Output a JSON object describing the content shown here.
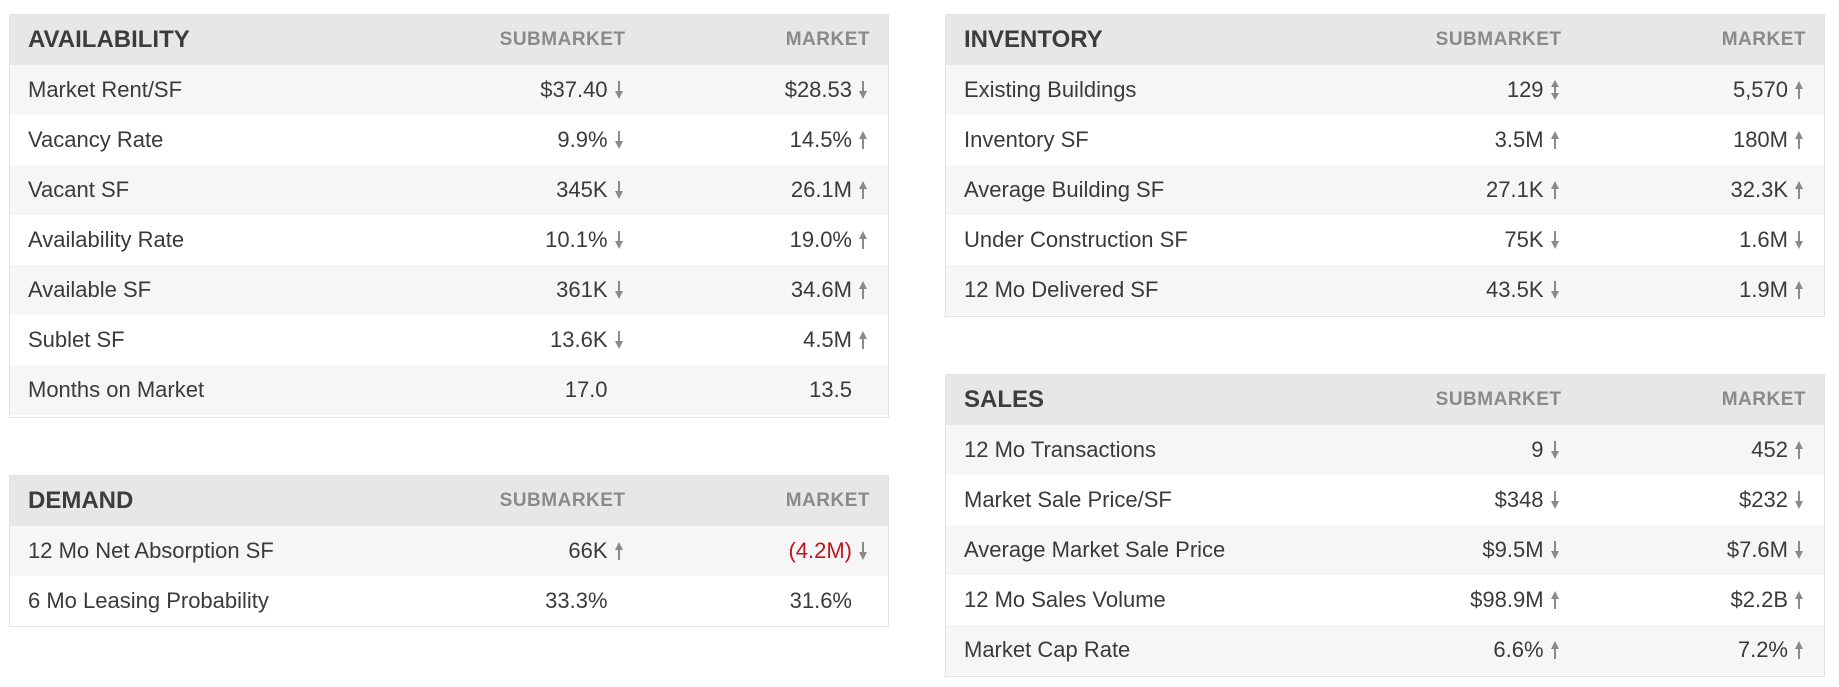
{
  "availability": {
    "title": "AVAILABILITY",
    "col_submarket": "SUBMARKET",
    "col_market": "MARKET",
    "rows": [
      {
        "label": "Market Rent/SF",
        "sub": "$37.40",
        "sub_dir": "down",
        "mkt": "$28.53",
        "mkt_dir": "down"
      },
      {
        "label": "Vacancy Rate",
        "sub": "9.9%",
        "sub_dir": "down",
        "mkt": "14.5%",
        "mkt_dir": "up"
      },
      {
        "label": "Vacant SF",
        "sub": "345K",
        "sub_dir": "down",
        "mkt": "26.1M",
        "mkt_dir": "up"
      },
      {
        "label": "Availability Rate",
        "sub": "10.1%",
        "sub_dir": "down",
        "mkt": "19.0%",
        "mkt_dir": "up"
      },
      {
        "label": "Available SF",
        "sub": "361K",
        "sub_dir": "down",
        "mkt": "34.6M",
        "mkt_dir": "up"
      },
      {
        "label": "Sublet SF",
        "sub": "13.6K",
        "sub_dir": "down",
        "mkt": "4.5M",
        "mkt_dir": "up"
      },
      {
        "label": "Months on Market",
        "sub": "17.0",
        "sub_dir": "none",
        "mkt": "13.5",
        "mkt_dir": "none"
      }
    ]
  },
  "demand": {
    "title": "DEMAND",
    "col_submarket": "SUBMARKET",
    "col_market": "MARKET",
    "rows": [
      {
        "label": "12 Mo Net Absorption SF",
        "sub": "66K",
        "sub_dir": "up",
        "mkt": "(4.2M)",
        "mkt_dir": "down",
        "mkt_negative": true
      },
      {
        "label": "6 Mo Leasing Probability",
        "sub": "33.3%",
        "sub_dir": "none",
        "mkt": "31.6%",
        "mkt_dir": "none"
      }
    ]
  },
  "inventory": {
    "title": "INVENTORY",
    "col_submarket": "SUBMARKET",
    "col_market": "MARKET",
    "rows": [
      {
        "label": "Existing Buildings",
        "sub": "129",
        "sub_dir": "updown",
        "mkt": "5,570",
        "mkt_dir": "up"
      },
      {
        "label": "Inventory SF",
        "sub": "3.5M",
        "sub_dir": "up",
        "mkt": "180M",
        "mkt_dir": "up"
      },
      {
        "label": "Average Building SF",
        "sub": "27.1K",
        "sub_dir": "up",
        "mkt": "32.3K",
        "mkt_dir": "up"
      },
      {
        "label": "Under Construction SF",
        "sub": "75K",
        "sub_dir": "down",
        "mkt": "1.6M",
        "mkt_dir": "down"
      },
      {
        "label": "12 Mo Delivered SF",
        "sub": "43.5K",
        "sub_dir": "down",
        "mkt": "1.9M",
        "mkt_dir": "up"
      }
    ]
  },
  "sales": {
    "title": "SALES",
    "col_submarket": "SUBMARKET",
    "col_market": "MARKET",
    "rows": [
      {
        "label": "12 Mo Transactions",
        "sub": "9",
        "sub_dir": "down",
        "mkt": "452",
        "mkt_dir": "up"
      },
      {
        "label": "Market Sale Price/SF",
        "sub": "$348",
        "sub_dir": "down",
        "mkt": "$232",
        "mkt_dir": "down"
      },
      {
        "label": "Average Market Sale Price",
        "sub": "$9.5M",
        "sub_dir": "down",
        "mkt": "$7.6M",
        "mkt_dir": "down"
      },
      {
        "label": "12 Mo Sales Volume",
        "sub": "$98.9M",
        "sub_dir": "up",
        "mkt": "$2.2B",
        "mkt_dir": "up"
      },
      {
        "label": "Market Cap Rate",
        "sub": "6.6%",
        "sub_dir": "up",
        "mkt": "7.2%",
        "mkt_dir": "up"
      }
    ]
  },
  "colors": {
    "header_bg": "#e7e7e7",
    "row_alt_bg": "#f6f6f6",
    "negative": "#c0161f",
    "arrow": "#8a8a8a"
  }
}
